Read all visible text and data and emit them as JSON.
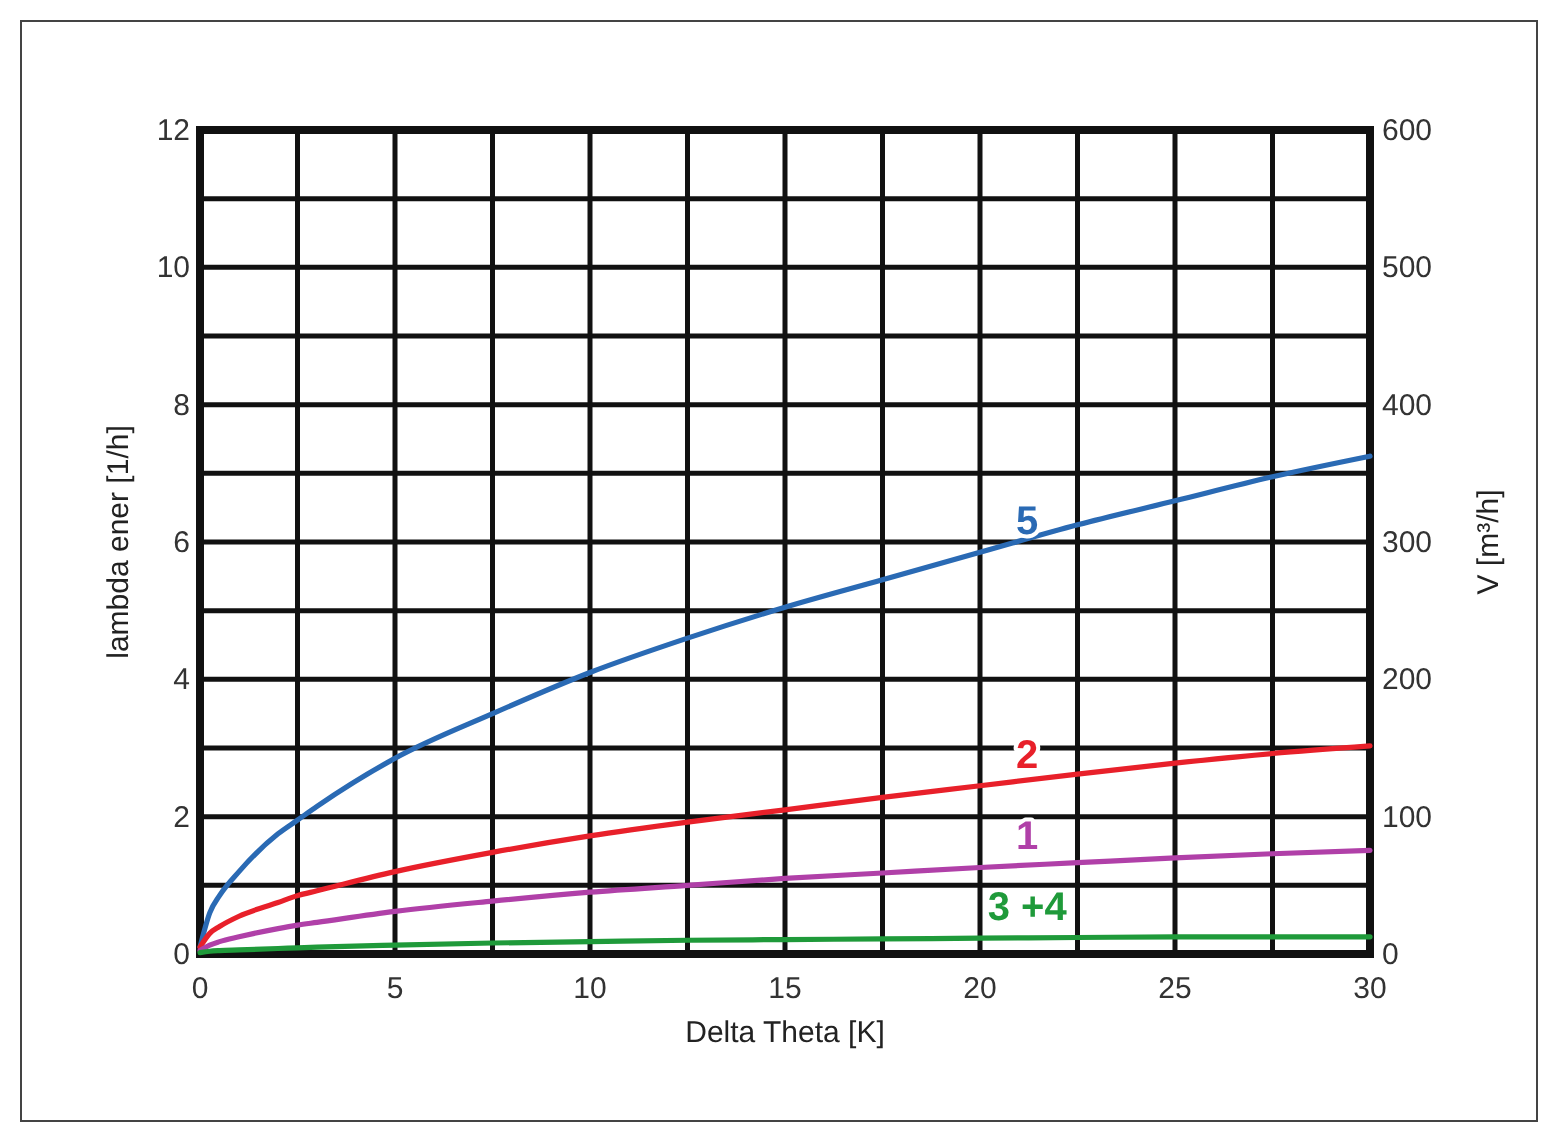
{
  "chart_data": {
    "type": "line",
    "xlabel": "Delta Theta [K]",
    "ylabel": "lambda ener [1/h]",
    "y2label": "V [m³/h]",
    "x": [
      0,
      0.25,
      0.5,
      1,
      2,
      2.5,
      3,
      5,
      7.5,
      10,
      12.5,
      15,
      17.5,
      20,
      22.5,
      25,
      27.5,
      30
    ],
    "series": [
      {
        "name": "5",
        "color": "#2a6ab4",
        "values": [
          0.1,
          0.6,
          0.85,
          1.2,
          1.75,
          1.95,
          2.15,
          2.85,
          3.5,
          4.1,
          4.6,
          5.05,
          5.45,
          5.85,
          6.25,
          6.6,
          6.95,
          7.25
        ]
      },
      {
        "name": "2",
        "color": "#e8202a",
        "values": [
          0.1,
          0.3,
          0.4,
          0.55,
          0.75,
          0.85,
          0.92,
          1.2,
          1.48,
          1.72,
          1.92,
          2.1,
          2.28,
          2.45,
          2.62,
          2.78,
          2.92,
          3.03
        ]
      },
      {
        "name": "1",
        "color": "#b040a8",
        "values": [
          0.05,
          0.13,
          0.18,
          0.25,
          0.37,
          0.42,
          0.46,
          0.62,
          0.77,
          0.9,
          1.0,
          1.1,
          1.18,
          1.26,
          1.33,
          1.4,
          1.46,
          1.51
        ]
      },
      {
        "name": "3 +4",
        "color": "#1f9a3a",
        "values": [
          0.02,
          0.04,
          0.05,
          0.06,
          0.08,
          0.09,
          0.1,
          0.13,
          0.16,
          0.18,
          0.2,
          0.21,
          0.22,
          0.23,
          0.24,
          0.25,
          0.25,
          0.25
        ]
      }
    ],
    "xlim": [
      0,
      30
    ],
    "ylim": [
      0,
      12
    ],
    "y2lim": [
      0,
      600
    ],
    "xticks": [
      0,
      {
        "value": 2.5,
        "label": null
      },
      5,
      {
        "value": 7.5,
        "label": null
      },
      10,
      {
        "value": 12.5,
        "label": null
      },
      15,
      {
        "value": 17.5,
        "label": null
      },
      20,
      {
        "value": 22.5,
        "label": null
      },
      25,
      {
        "value": 27.5,
        "label": null
      },
      30
    ],
    "yticks": [
      0,
      {
        "value": 1,
        "label": null
      },
      2,
      {
        "value": 3,
        "label": null
      },
      4,
      {
        "value": 5,
        "label": null
      },
      6,
      {
        "value": 7,
        "label": null
      },
      8,
      {
        "value": 9,
        "label": null
      },
      10,
      {
        "value": 11,
        "label": null
      },
      12
    ],
    "y2ticks": [
      0,
      100,
      200,
      300,
      400,
      500,
      600
    ],
    "grid": true,
    "marker": "none",
    "line_style": "solid"
  }
}
